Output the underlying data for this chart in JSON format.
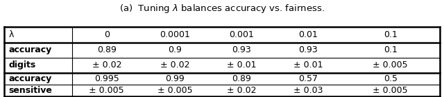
{
  "title": "(a)  Tuning $\\lambda$ balances accuracy vs. fairness.",
  "col_headers": [
    "λ",
    "0",
    "0.0001",
    "0.001",
    "0.01",
    "0.1"
  ],
  "row_group1_labels": [
    "accuracy",
    "digits"
  ],
  "row_group2_labels": [
    "accuracy",
    "sensitive"
  ],
  "group1_data": [
    [
      "0.89",
      "0.9",
      "0.93",
      "0.93",
      "0.1"
    ],
    [
      "± 0.02",
      "± 0.02",
      "± 0.01",
      "± 0.01",
      "± 0.005"
    ]
  ],
  "group2_data": [
    [
      "0.995",
      "0.99",
      "0.89",
      "0.57",
      "0.5"
    ],
    [
      "± 0.005",
      "± 0.005",
      "± 0.02",
      "± 0.03",
      "± 0.005"
    ]
  ],
  "bg_color": "#ffffff",
  "text_color": "#000000",
  "title_fontsize": 9.5,
  "table_fontsize": 9,
  "thick_lw": 1.8,
  "thin_lw": 0.8
}
